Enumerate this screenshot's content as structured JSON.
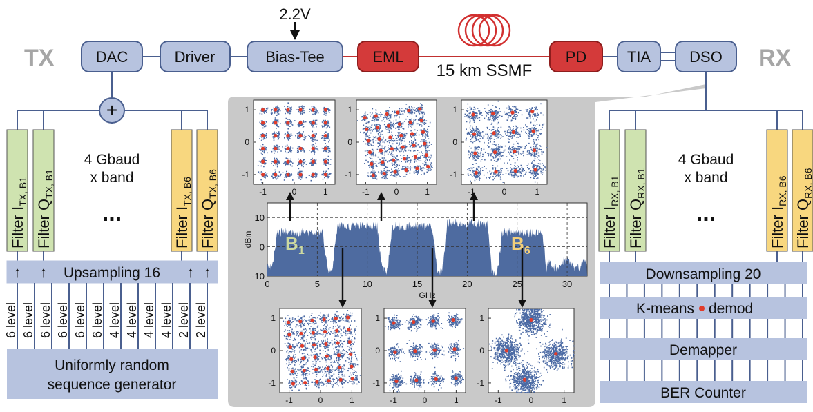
{
  "labels": {
    "tx": "TX",
    "rx": "RX",
    "dac": "DAC",
    "driver": "Driver",
    "bias_tee": "Bias-Tee",
    "bias_voltage": "2.2V",
    "eml": "EML",
    "fiber": "15 km SSMF",
    "pd": "PD",
    "tia": "TIA",
    "dso": "DSO",
    "plus": "+",
    "tx_rate_line1": "4 Gbaud",
    "tx_rate_line2": "x band",
    "rx_rate_line1": "4 Gbaud",
    "rx_rate_line2": "x band",
    "ellipsis": "...",
    "upsampling": "Upsampling 16",
    "downsampling": "Downsampling 20",
    "kmeans_left": "K-means",
    "kmeans_right": "demod",
    "demapper": "Demapper",
    "ber_counter": "BER Counter",
    "generator_line1": "Uniformly random",
    "generator_line2": "sequence generator",
    "arrow_up": "↑",
    "filter_word": "Filter",
    "b1": "B",
    "b1_sub": "1",
    "b6": "B",
    "b6_sub": "6"
  },
  "tx_filters": [
    {
      "kind": "I",
      "sub": "TX, B1"
    },
    {
      "kind": "Q",
      "sub": "TX, B1"
    },
    {
      "kind": "I",
      "sub": "TX, B6"
    },
    {
      "kind": "Q",
      "sub": "TX, B6"
    }
  ],
  "rx_filters": [
    {
      "kind": "I",
      "sub": "RX, B1"
    },
    {
      "kind": "Q",
      "sub": "RX, B1"
    },
    {
      "kind": "I",
      "sub": "RX, B6"
    },
    {
      "kind": "Q",
      "sub": "RX, B6"
    }
  ],
  "level_labels": [
    "6 level",
    "6 level",
    "6 level",
    "6 level",
    "6 level",
    "6 level",
    "4 level",
    "4 level",
    "4 level",
    "4 level",
    "2 level",
    "2 level"
  ],
  "spectrum": {
    "xlabel": "GHz",
    "ylabel": "dBm",
    "xticks": [
      "0",
      "5",
      "10",
      "15",
      "20",
      "25",
      "30"
    ],
    "yticks": [
      "10",
      "0",
      "-10"
    ],
    "xlim": [
      0,
      32
    ],
    "ylim": [
      -10,
      15
    ]
  },
  "constellation_ticks": {
    "top_x": [
      "-1",
      "0",
      "1"
    ],
    "top_y": [
      "1",
      "0",
      "-1"
    ],
    "bottom_x": [
      "-1",
      "0",
      "1"
    ],
    "bottom_y": [
      "1",
      "0",
      "-1"
    ]
  },
  "colors": {
    "box_fill": "#b7c3df",
    "box_stroke": "#4a5f8f",
    "eml_fill": "#d23a3a",
    "filter_green": "#cfe3b0",
    "filter_yellow": "#f8d77f",
    "panel_gray": "#c8c8c8",
    "point_blue": "#4b6aa4",
    "centroid_red": "#e03c2b",
    "spectrum_blue": "#4e6ba0",
    "b1_label": "#cdd9a0",
    "b6_label": "#f3cf7a"
  }
}
